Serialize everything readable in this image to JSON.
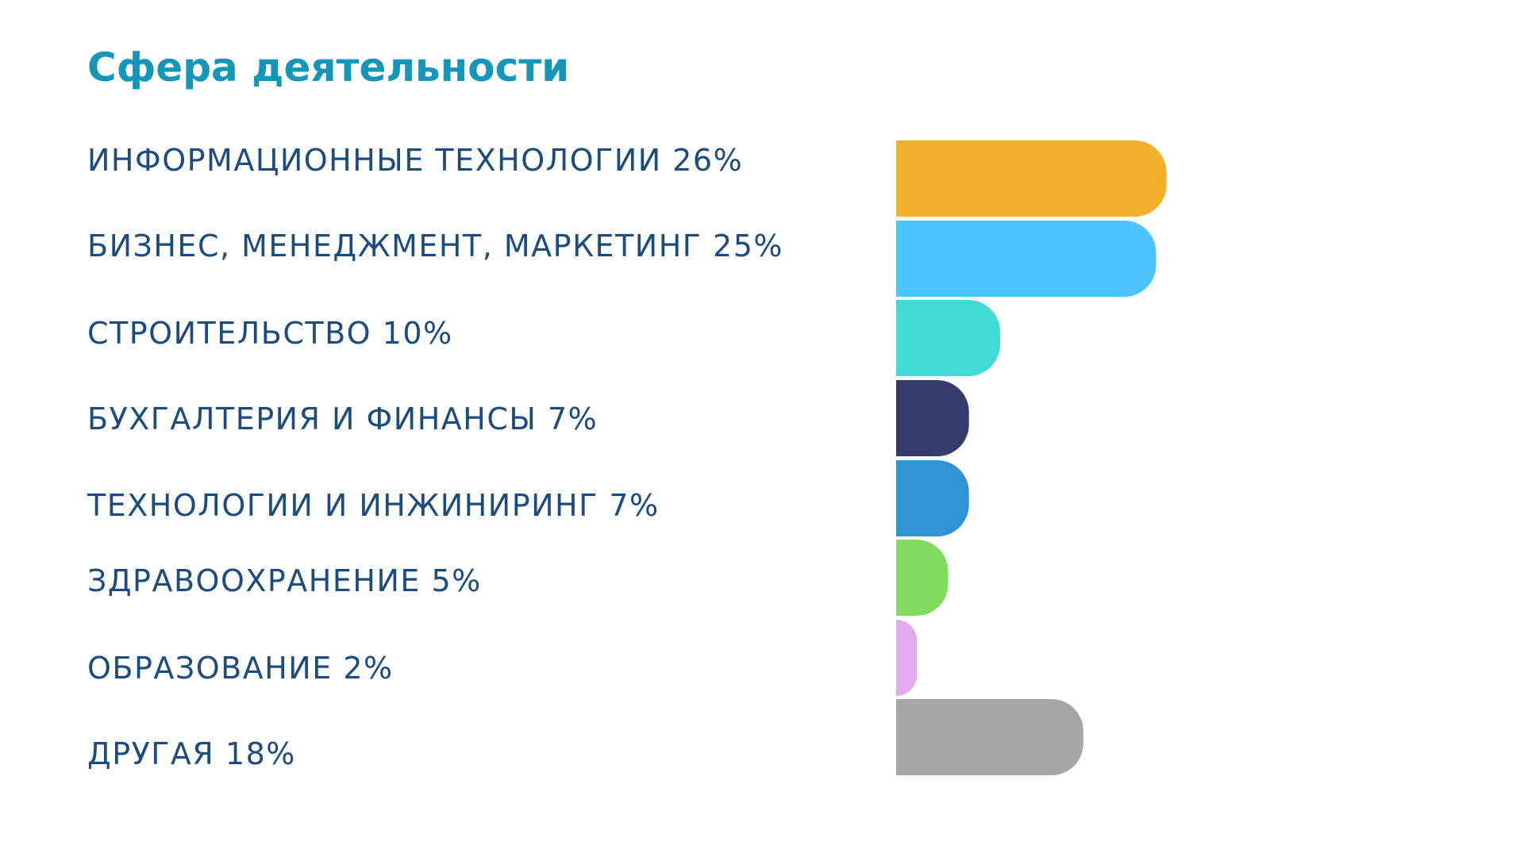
{
  "title": "Сфера деятельности",
  "chart_data": {
    "type": "bar",
    "orientation": "horizontal",
    "title": "Сфера деятельности",
    "categories": [
      "ИНФОРМАЦИОННЫЕ ТЕХНОЛОГИИ",
      "БИЗНЕС, МЕНЕДЖМЕНТ, МАРКЕТИНГ",
      "СТРОИТЕЛЬСТВО",
      "БУХГАЛТЕРИЯ И ФИНАНСЫ",
      "ТЕХНОЛОГИИ И ИНЖИНИРИНГ",
      "ЗДРАВООХРАНЕНИЕ",
      "ОБРАЗОВАНИЕ",
      "ДРУГАЯ"
    ],
    "values": [
      26,
      25,
      10,
      7,
      7,
      5,
      2,
      18
    ],
    "labels": [
      "ИНФОРМАЦИОННЫЕ ТЕХНОЛОГИИ 26%",
      "БИЗНЕС, МЕНЕДЖМЕНТ, МАРКЕТИНГ 25%",
      "СТРОИТЕЛЬСТВО 10%",
      "БУХГАЛТЕРИЯ И ФИНАНСЫ 7%",
      "ТЕХНОЛОГИИ И ИНЖИНИРИНГ 7%",
      "ЗДРАВООХРАНЕНИЕ 5%",
      "ОБРАЗОВАНИЕ 2%",
      "ДРУГАЯ 18%"
    ],
    "colors": [
      "#f4b028",
      "#4cc4fd",
      "#40dad7",
      "#353b6a",
      "#2e93d7",
      "#7fdc5c",
      "#e1aaef",
      "#a6a6a6"
    ],
    "unit": "%",
    "grid": false,
    "legend": "none"
  }
}
